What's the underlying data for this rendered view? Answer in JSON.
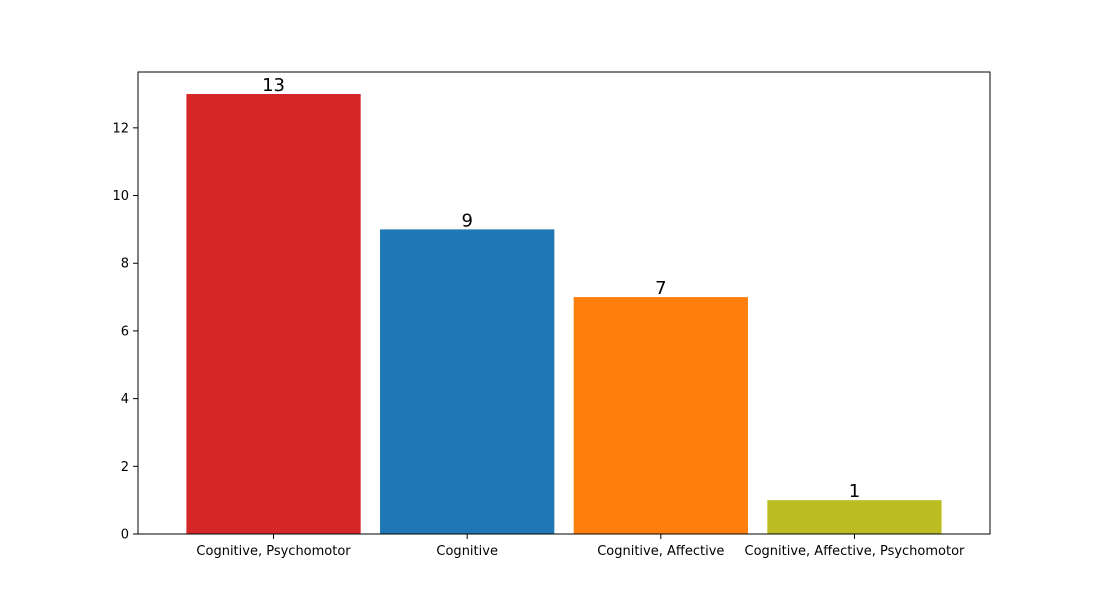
{
  "chart_data": {
    "type": "bar",
    "title": "",
    "xlabel": "",
    "ylabel": "",
    "categories": [
      "Cognitive, Psychomotor",
      "Cognitive",
      "Cognitive, Affective",
      "Cognitive, Affective, Psychomotor"
    ],
    "values": [
      13,
      9,
      7,
      1
    ],
    "data_labels": [
      "13",
      "9",
      "7",
      "1"
    ],
    "colors": [
      "#d62728",
      "#1f77b4",
      "#ff7f0e",
      "#bcbd22"
    ],
    "ylim": [
      0,
      13.65
    ],
    "yticks": [
      0,
      2,
      4,
      6,
      8,
      10,
      12
    ],
    "ytick_labels": [
      "0",
      "2",
      "4",
      "6",
      "8",
      "10",
      "12"
    ],
    "grid": false,
    "legend": "none"
  }
}
